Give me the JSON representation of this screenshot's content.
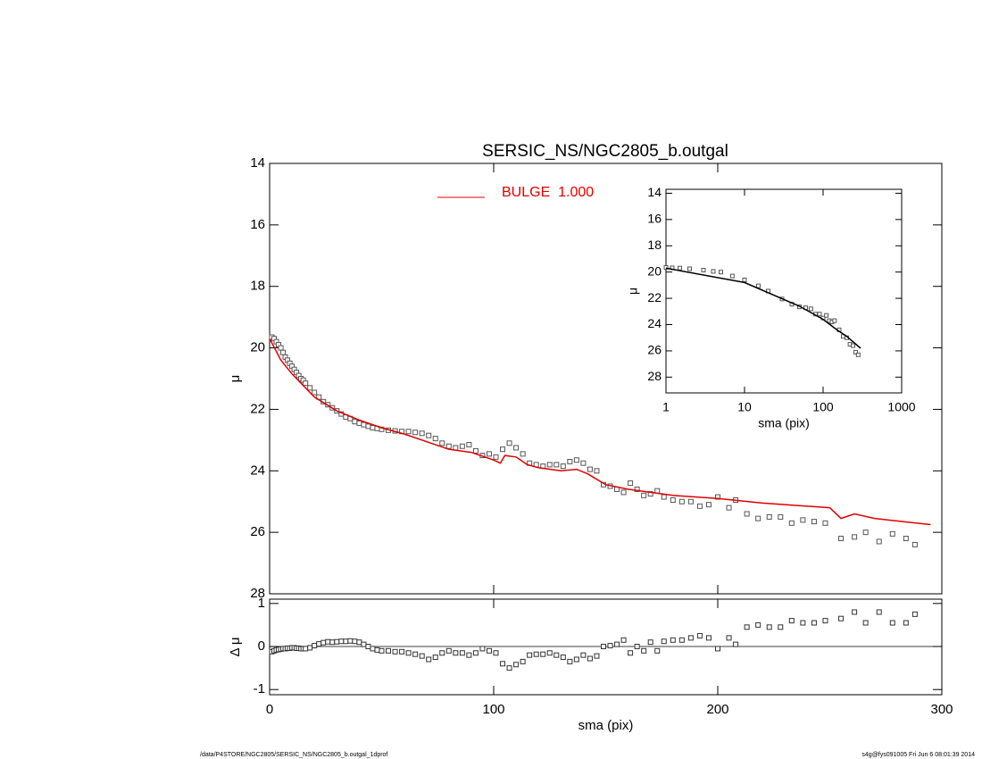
{
  "chart_data": [
    {
      "type": "profile",
      "title": "SERSIC_NS/NGC2805_b.outgal",
      "ylabel": "μ",
      "xlim": [
        0,
        300
      ],
      "xticks": [
        0,
        100,
        200,
        300
      ],
      "ylim": [
        28,
        14
      ],
      "yticks": [
        14,
        16,
        18,
        20,
        22,
        24,
        26,
        28
      ],
      "series": [
        {
          "type": "scatter",
          "color": "#555555",
          "x": [
            1,
            2,
            3,
            4,
            5,
            6,
            7,
            8,
            9,
            10,
            11,
            12,
            13,
            14,
            15,
            16,
            18,
            20,
            22,
            24,
            26,
            28,
            30,
            32,
            34,
            36,
            38,
            40,
            42,
            44,
            46,
            48,
            50,
            53,
            56,
            59,
            62,
            65,
            68,
            71,
            74,
            77,
            80,
            83,
            86,
            89,
            92,
            95,
            98,
            101,
            104,
            107,
            110,
            113,
            116,
            119,
            122,
            125,
            128,
            131,
            134,
            137,
            140,
            143,
            146,
            149,
            152,
            155,
            158,
            161,
            164,
            167,
            170,
            173,
            176,
            180,
            184,
            188,
            192,
            196,
            200,
            205,
            208,
            213,
            218,
            223,
            228,
            233,
            238,
            243,
            248,
            255,
            261,
            266,
            272,
            278,
            284,
            288
          ],
          "values": [
            19.65,
            19.7,
            19.8,
            19.9,
            20.0,
            20.15,
            20.3,
            20.4,
            20.5,
            20.6,
            20.7,
            20.8,
            20.9,
            21.0,
            21.05,
            21.15,
            21.3,
            21.45,
            21.6,
            21.75,
            21.85,
            21.95,
            22.05,
            22.15,
            22.25,
            22.3,
            22.4,
            22.45,
            22.5,
            22.55,
            22.6,
            22.62,
            22.65,
            22.68,
            22.7,
            22.72,
            22.72,
            22.75,
            22.78,
            22.85,
            22.95,
            23.1,
            23.2,
            23.25,
            23.2,
            23.15,
            23.35,
            23.5,
            23.45,
            23.55,
            23.3,
            23.1,
            23.25,
            23.45,
            23.75,
            23.8,
            23.85,
            23.8,
            23.8,
            23.85,
            23.7,
            23.65,
            23.75,
            23.95,
            24.0,
            24.45,
            24.5,
            24.6,
            24.7,
            24.4,
            24.6,
            24.8,
            24.75,
            24.65,
            24.85,
            24.95,
            25.0,
            25.0,
            25.15,
            25.1,
            24.85,
            25.2,
            24.95,
            25.4,
            25.55,
            25.5,
            25.5,
            25.7,
            25.6,
            25.65,
            25.7,
            26.2,
            26.15,
            26.0,
            26.3,
            26.05,
            26.2,
            26.4
          ]
        },
        {
          "type": "line",
          "name": "BULGE  1.000",
          "color": "#e00000",
          "x": [
            0,
            5,
            10,
            20,
            30,
            40,
            50,
            60,
            70,
            80,
            90,
            100,
            103,
            105,
            110,
            115,
            120,
            130,
            137,
            142,
            150,
            160,
            170,
            180,
            200,
            220,
            240,
            250,
            255,
            261,
            270,
            295
          ],
          "values": [
            19.7,
            20.4,
            20.85,
            21.6,
            22.05,
            22.35,
            22.6,
            22.8,
            23.05,
            23.3,
            23.4,
            23.65,
            23.75,
            23.5,
            23.55,
            23.8,
            23.9,
            24.0,
            23.95,
            24.1,
            24.45,
            24.6,
            24.7,
            24.8,
            24.9,
            25.05,
            25.15,
            25.2,
            25.55,
            25.4,
            25.55,
            25.75
          ]
        }
      ]
    },
    {
      "type": "residual",
      "ylabel": "Δ μ",
      "xlabel": "sma (pix)",
      "xlim": [
        0,
        300
      ],
      "xticks": [
        0,
        100,
        200,
        300
      ],
      "ylim": [
        -1.12,
        1.1
      ],
      "yticks": [
        -1,
        0,
        1
      ],
      "reference_line": 0,
      "series": [
        {
          "type": "scatter",
          "color": "#333333",
          "x": [
            1,
            2,
            3,
            4,
            5,
            6,
            7,
            8,
            9,
            10,
            11,
            12,
            13,
            14,
            15,
            16,
            18,
            20,
            22,
            24,
            26,
            28,
            30,
            32,
            34,
            36,
            38,
            40,
            42,
            44,
            46,
            48,
            50,
            53,
            56,
            59,
            62,
            65,
            68,
            71,
            74,
            77,
            80,
            83,
            86,
            89,
            92,
            95,
            98,
            101,
            104,
            107,
            110,
            113,
            116,
            119,
            122,
            125,
            128,
            131,
            134,
            137,
            140,
            143,
            146,
            149,
            152,
            155,
            158,
            161,
            164,
            167,
            170,
            173,
            176,
            180,
            184,
            188,
            192,
            196,
            200,
            205,
            208,
            213,
            218,
            223,
            228,
            233,
            238,
            243,
            248,
            255,
            261,
            266,
            272,
            278,
            284,
            288
          ],
          "values": [
            -0.12,
            -0.1,
            -0.08,
            -0.07,
            -0.06,
            -0.05,
            -0.05,
            -0.04,
            -0.04,
            -0.03,
            -0.03,
            -0.04,
            -0.04,
            -0.05,
            -0.05,
            -0.05,
            -0.03,
            0.02,
            0.06,
            0.09,
            0.11,
            0.1,
            0.11,
            0.12,
            0.12,
            0.13,
            0.12,
            0.1,
            0.05,
            0.0,
            -0.05,
            -0.08,
            -0.1,
            -0.1,
            -0.12,
            -0.12,
            -0.15,
            -0.18,
            -0.22,
            -0.3,
            -0.25,
            -0.15,
            -0.1,
            -0.15,
            -0.15,
            -0.2,
            -0.15,
            -0.05,
            -0.1,
            -0.15,
            -0.4,
            -0.5,
            -0.42,
            -0.35,
            -0.2,
            -0.18,
            -0.18,
            -0.15,
            -0.2,
            -0.25,
            -0.35,
            -0.3,
            -0.2,
            -0.28,
            -0.22,
            0.0,
            0.02,
            0.05,
            0.15,
            -0.15,
            0.0,
            -0.1,
            0.1,
            -0.1,
            0.12,
            0.15,
            0.15,
            0.2,
            0.25,
            0.2,
            -0.05,
            0.2,
            0.05,
            0.45,
            0.5,
            0.45,
            0.45,
            0.6,
            0.55,
            0.55,
            0.6,
            0.65,
            0.8,
            0.55,
            0.8,
            0.55,
            0.55,
            0.75
          ]
        }
      ]
    },
    {
      "type": "inset",
      "ylabel": "μ",
      "xlabel": "sma (pix)",
      "xscale": "log",
      "xlim": [
        1,
        1000
      ],
      "xticks": [
        1,
        10,
        100,
        1000
      ],
      "ylim": [
        29.2,
        13.7
      ],
      "yticks": [
        14,
        16,
        18,
        20,
        22,
        24,
        26,
        28
      ],
      "series": [
        {
          "type": "scatter",
          "color": "#555555",
          "x": [
            1,
            1.2,
            1.5,
            2,
            3,
            4,
            5,
            7,
            10,
            15,
            20,
            30,
            40,
            50,
            60,
            70,
            80,
            90,
            100,
            110,
            120,
            130,
            140,
            160,
            180,
            200,
            220,
            240,
            260,
            280
          ],
          "values": [
            19.65,
            19.68,
            19.7,
            19.75,
            19.85,
            19.95,
            20.0,
            20.3,
            20.6,
            21.05,
            21.45,
            22.05,
            22.45,
            22.65,
            22.72,
            22.8,
            23.2,
            23.2,
            23.5,
            23.3,
            23.7,
            23.8,
            23.7,
            24.4,
            24.9,
            25.0,
            25.5,
            25.6,
            26.1,
            26.3
          ]
        },
        {
          "type": "line",
          "color": "#000000",
          "x": [
            1,
            10,
            50,
            100,
            150,
            200,
            300
          ],
          "values": [
            19.7,
            20.8,
            22.6,
            23.6,
            24.4,
            24.9,
            25.8
          ]
        }
      ]
    }
  ],
  "footer": {
    "left": "/data/P4STORE/NGC2805/SERSIC_NS/NGC2805_b.outgal_1dprof",
    "right": "s4g@fys091005  Fri Jun  6 08:01:39 2014"
  }
}
